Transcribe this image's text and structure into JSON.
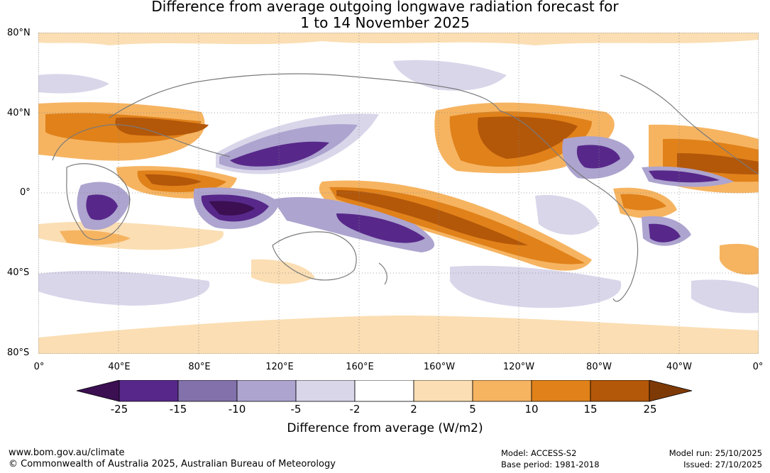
{
  "title_line1": "Difference from average outgoing longwave radiation forecast for",
  "title_line2": "1 to 14 November 2025",
  "lat_labels": [
    "80°N",
    "40°N",
    "0°",
    "40°S",
    "80°S"
  ],
  "lon_labels": [
    "0°",
    "40°E",
    "80°E",
    "120°E",
    "160°E",
    "160°W",
    "120°W",
    "80°W",
    "40°W",
    "0°"
  ],
  "colorbar": {
    "ticks": [
      "-25",
      "-15",
      "-10",
      "-5",
      "-2",
      "2",
      "5",
      "10",
      "15",
      "25"
    ],
    "colors": [
      "#3b0f52",
      "#57288a",
      "#8271aa",
      "#ada4cf",
      "#d9d6ea",
      "#ffffff",
      "#fbdeb3",
      "#f6b461",
      "#e0811a",
      "#b35709",
      "#7e3a06"
    ],
    "label": "Difference from average (W/m2)"
  },
  "footer": {
    "url": "www.bom.gov.au/climate",
    "copyright": "© Commonwealth of Australia 2025, Australian Bureau of Meteorology",
    "model": "Model: ACCESS-S2",
    "base_period": "Base period: 1981-2018",
    "model_run": "Model run: 25/10/2025",
    "issued": "Issued: 27/10/2025"
  }
}
